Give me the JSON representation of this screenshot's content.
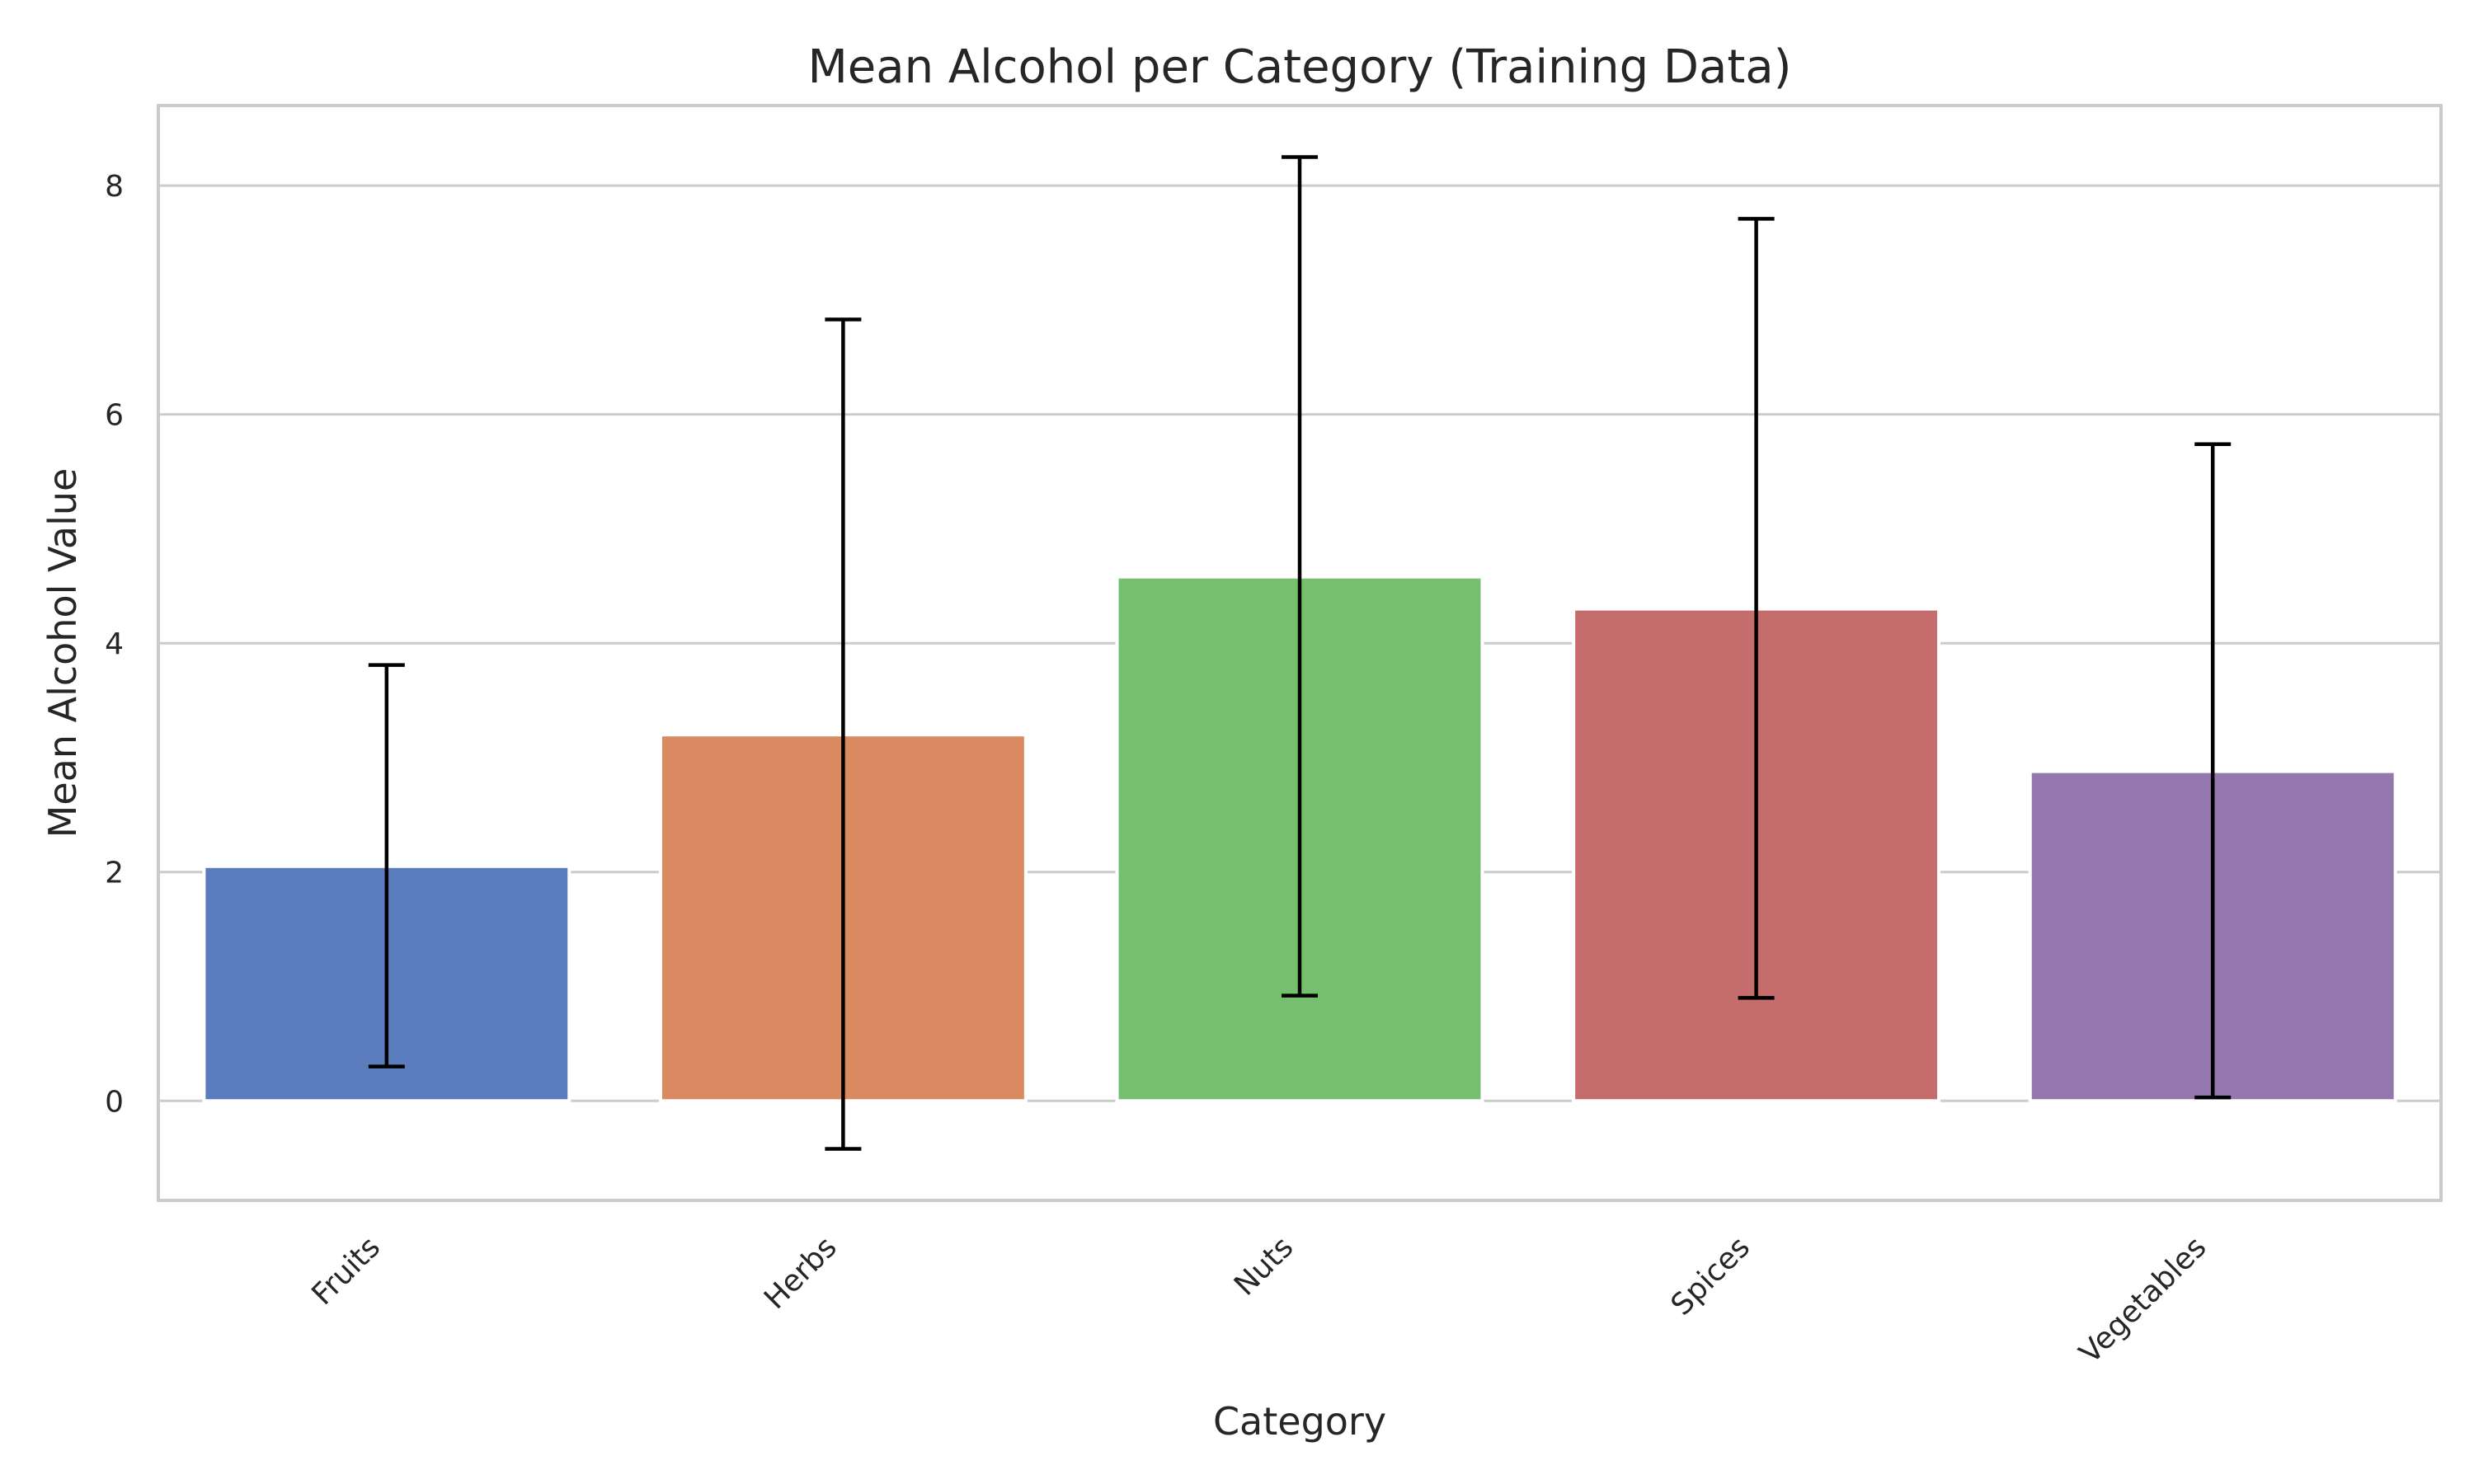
{
  "chart_data": {
    "type": "bar",
    "title": "Mean Alcohol per Category (Training Data)",
    "xlabel": "Category",
    "ylabel": "Mean Alcohol Value",
    "categories": [
      "Fruits",
      "Herbs",
      "Nuts",
      "Spices",
      "Vegetables"
    ],
    "values": [
      2.05,
      3.2,
      4.58,
      4.3,
      2.88
    ],
    "error_low": [
      0.3,
      -0.42,
      0.92,
      0.9,
      0.03
    ],
    "error_high": [
      3.81,
      6.83,
      8.25,
      7.71,
      5.74
    ],
    "colors": [
      "#5b7dbd",
      "#d98a60",
      "#75bf6e",
      "#c56d6c",
      "#9377ad"
    ],
    "ylim": [
      -0.87,
      8.7
    ],
    "yticks": [
      0,
      2,
      4,
      6,
      8
    ],
    "grid": "y",
    "legend": "none"
  }
}
